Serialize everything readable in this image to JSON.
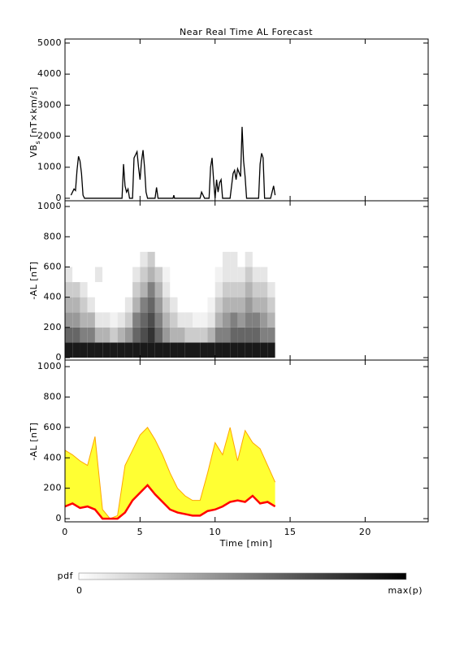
{
  "chart_data": [
    {
      "type": "line",
      "title": "Near Real Time AL Forecast",
      "ylabel": {
        "main": "VB",
        "sub": "s",
        "unit": "[nT×km/s]"
      },
      "color": "#000000",
      "x": [
        0.4,
        0.5,
        0.6,
        0.7,
        0.8,
        0.9,
        1.0,
        1.1,
        1.2,
        1.3,
        3.8,
        3.9,
        4.0,
        4.1,
        4.2,
        4.3,
        4.5,
        4.6,
        4.7,
        4.8,
        4.9,
        5.0,
        5.1,
        5.2,
        5.3,
        5.4,
        5.5,
        6.0,
        6.1,
        6.2,
        7.2,
        7.25,
        7.3,
        9.0,
        9.1,
        9.3,
        9.6,
        9.7,
        9.8,
        9.9,
        10.0,
        10.1,
        10.2,
        10.3,
        10.4,
        10.5,
        11.0,
        11.2,
        11.3,
        11.4,
        11.5,
        11.7,
        11.8,
        11.9,
        12.0,
        12.1,
        12.9,
        13.0,
        13.1,
        13.2,
        13.3,
        13.7,
        13.8,
        13.9,
        14.0
      ],
      "y": [
        100,
        200,
        300,
        250,
        900,
        1350,
        1200,
        800,
        100,
        0,
        0,
        1100,
        400,
        200,
        300,
        0,
        0,
        1300,
        1400,
        1500,
        1000,
        600,
        1200,
        1550,
        1000,
        200,
        0,
        0,
        350,
        0,
        0,
        100,
        0,
        0,
        200,
        0,
        0,
        1000,
        1300,
        600,
        0,
        600,
        200,
        500,
        600,
        0,
        0,
        800,
        900,
        600,
        950,
        700,
        2300,
        1200,
        700,
        0,
        0,
        1100,
        1450,
        1300,
        0,
        0,
        200,
        400,
        100
      ],
      "xlim": [
        0,
        24.2
      ],
      "xticks": [
        0,
        5,
        10,
        15,
        20
      ],
      "ylim": [
        -80,
        5130
      ],
      "yticks": [
        0,
        1000,
        2000,
        3000,
        4000,
        5000
      ]
    },
    {
      "type": "heatmap",
      "ylabel": "-AL [nT]",
      "colormap": "gray",
      "time_edges": [
        0,
        0.5,
        1,
        1.5,
        2,
        2.5,
        3,
        3.5,
        4,
        4.5,
        5,
        5.5,
        6,
        6.5,
        7,
        7.5,
        8,
        8.5,
        9,
        9.5,
        10,
        10.5,
        11,
        11.5,
        12,
        12.5,
        13,
        13.5,
        14
      ],
      "al_edges": [
        0,
        100,
        200,
        300,
        400,
        500,
        600,
        700
      ],
      "pdf": [
        [
          0.9,
          0.9,
          0.9,
          0.9,
          0.9,
          0.9,
          0.9,
          0.9,
          0.9,
          0.9,
          0.9,
          0.9,
          0.9,
          0.9,
          0.9,
          0.9,
          0.9,
          0.9,
          0.9,
          0.9,
          0.9,
          0.9,
          0.9,
          0.9,
          0.9,
          0.9,
          0.9,
          0.9
        ],
        [
          0.6,
          0.6,
          0.5,
          0.5,
          0.3,
          0.3,
          0.2,
          0.3,
          0.4,
          0.6,
          0.7,
          0.8,
          0.6,
          0.4,
          0.3,
          0.3,
          0.2,
          0.2,
          0.2,
          0.3,
          0.5,
          0.5,
          0.6,
          0.6,
          0.6,
          0.6,
          0.5,
          0.5
        ],
        [
          0.4,
          0.4,
          0.3,
          0.3,
          0.1,
          0.1,
          0.05,
          0.1,
          0.2,
          0.5,
          0.6,
          0.7,
          0.5,
          0.3,
          0.2,
          0.1,
          0.1,
          0.05,
          0.05,
          0.1,
          0.3,
          0.4,
          0.5,
          0.4,
          0.5,
          0.5,
          0.4,
          0.3
        ],
        [
          0.3,
          0.3,
          0.2,
          0.1,
          0,
          0,
          0,
          0,
          0.1,
          0.3,
          0.5,
          0.6,
          0.4,
          0.2,
          0.1,
          0,
          0,
          0,
          0,
          0.05,
          0.2,
          0.3,
          0.3,
          0.3,
          0.4,
          0.3,
          0.3,
          0.2
        ],
        [
          0.2,
          0.2,
          0.1,
          0,
          0,
          0,
          0,
          0,
          0,
          0.2,
          0.3,
          0.5,
          0.3,
          0.1,
          0,
          0,
          0,
          0,
          0,
          0,
          0.1,
          0.2,
          0.2,
          0.2,
          0.3,
          0.2,
          0.2,
          0.1
        ],
        [
          0.1,
          0,
          0,
          0,
          0.1,
          0,
          0,
          0,
          0,
          0.1,
          0.2,
          0.3,
          0.2,
          0.05,
          0,
          0,
          0,
          0,
          0,
          0,
          0.05,
          0.1,
          0.1,
          0.1,
          0.2,
          0.1,
          0.1,
          0
        ],
        [
          0,
          0,
          0,
          0,
          0,
          0,
          0,
          0,
          0,
          0,
          0.1,
          0.2,
          0,
          0,
          0,
          0,
          0,
          0,
          0,
          0,
          0,
          0.1,
          0.1,
          0,
          0.1,
          0,
          0,
          0
        ]
      ],
      "xlim": [
        0,
        24.2
      ],
      "xticks": [
        0,
        5,
        10,
        15,
        20
      ],
      "ylim": [
        -16,
        1038
      ],
      "yticks": [
        0,
        200,
        400,
        600,
        800,
        1000
      ]
    },
    {
      "type": "band",
      "ylabel": "-AL [nT]",
      "xlabel": "Time [min]",
      "fill_color": "#ffff33",
      "x": [
        0,
        0.5,
        1,
        1.5,
        2,
        2.5,
        3,
        3.5,
        4,
        4.5,
        5,
        5.5,
        6,
        6.5,
        7,
        7.5,
        8,
        8.5,
        9,
        9.5,
        10,
        10.5,
        11,
        11.5,
        12,
        12.5,
        13,
        13.5,
        14
      ],
      "series": [
        {
          "color": "#ffa500",
          "values": [
            450,
            420,
            380,
            350,
            540,
            60,
            0,
            20,
            350,
            450,
            550,
            600,
            520,
            420,
            300,
            200,
            150,
            120,
            120,
            300,
            500,
            420,
            600,
            380,
            580,
            500,
            460,
            350,
            240
          ]
        },
        {
          "color": "#ff0000",
          "values": [
            80,
            100,
            70,
            80,
            60,
            0,
            0,
            0,
            40,
            120,
            170,
            220,
            160,
            110,
            60,
            40,
            30,
            20,
            20,
            50,
            60,
            80,
            110,
            120,
            110,
            150,
            100,
            110,
            80
          ]
        }
      ],
      "xlim": [
        0,
        24.2
      ],
      "xticks": [
        0,
        5,
        10,
        15,
        20
      ],
      "ylim": [
        -21,
        1043
      ],
      "yticks": [
        0,
        200,
        400,
        600,
        800,
        1000
      ]
    }
  ],
  "colorbar": {
    "label": "pdf",
    "min_label": "0",
    "max_label": "max(p)"
  }
}
